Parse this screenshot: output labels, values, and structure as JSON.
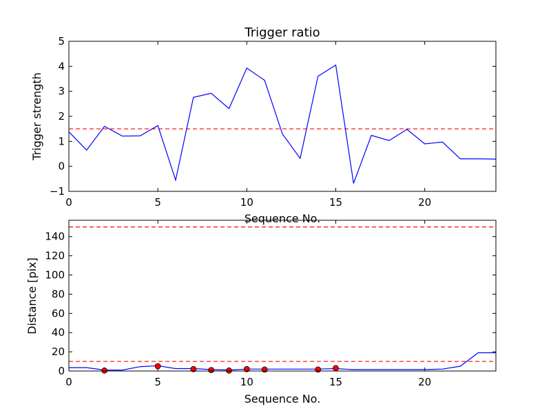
{
  "chart_data": [
    {
      "type": "line",
      "title": "Trigger ratio",
      "xlabel": "Sequence No.",
      "ylabel": "Trigger strength",
      "xlim": [
        0,
        24
      ],
      "ylim": [
        -1,
        5
      ],
      "x_ticks": [
        0,
        5,
        10,
        15,
        20
      ],
      "y_ticks": [
        -1,
        0,
        1,
        2,
        3,
        4,
        5
      ],
      "x_tick_labels": [
        "0",
        "5",
        "10",
        "15",
        "20"
      ],
      "y_tick_labels": [
        "−1",
        "0",
        "1",
        "2",
        "3",
        "4",
        "5"
      ],
      "grid": false,
      "series": [
        {
          "color": "#0000ff",
          "x": [
            0,
            1,
            2,
            3,
            4,
            5,
            6,
            7,
            8,
            9,
            10,
            11,
            12,
            13,
            14,
            15,
            16,
            17,
            18,
            19,
            20,
            21,
            22,
            23,
            24
          ],
          "values": [
            1.38,
            0.65,
            1.6,
            1.21,
            1.22,
            1.63,
            -0.55,
            2.76,
            2.92,
            2.31,
            3.93,
            3.44,
            1.3,
            0.32,
            3.6,
            4.05,
            -0.68,
            1.24,
            1.03,
            1.48,
            0.9,
            0.97,
            0.3,
            0.3,
            0.29
          ]
        }
      ],
      "reference_lines": [
        {
          "y": 1.5,
          "color": "#ff0000",
          "style": "dashed"
        }
      ]
    },
    {
      "type": "line",
      "title": "",
      "xlabel": "Sequence No.",
      "ylabel": "Distance [pix]",
      "xlim": [
        0,
        24
      ],
      "ylim": [
        0,
        157
      ],
      "x_ticks": [
        0,
        5,
        10,
        15,
        20
      ],
      "y_ticks": [
        0,
        20,
        40,
        60,
        80,
        100,
        120,
        140
      ],
      "x_tick_labels": [
        "0",
        "5",
        "10",
        "15",
        "20"
      ],
      "y_tick_labels": [
        "0",
        "20",
        "40",
        "60",
        "80",
        "100",
        "120",
        "140"
      ],
      "grid": false,
      "series": [
        {
          "color": "#0000ff",
          "x": [
            0,
            1,
            2,
            3,
            4,
            5,
            6,
            7,
            8,
            9,
            10,
            11,
            12,
            13,
            14,
            15,
            16,
            17,
            18,
            19,
            20,
            21,
            22,
            23,
            24
          ],
          "values": [
            3.5,
            3.5,
            1,
            1,
            4.5,
            5.5,
            2.5,
            2.5,
            1.5,
            1,
            2,
            2,
            2,
            2,
            2,
            2.5,
            1.5,
            1.5,
            1.5,
            1.5,
            1.5,
            2,
            5,
            19,
            19
          ]
        },
        {
          "color": "#ff0000",
          "marker": "circle",
          "x": [
            2,
            5,
            7,
            8,
            9,
            10,
            11,
            14,
            15
          ],
          "values": [
            0.5,
            5,
            2,
            1,
            0.5,
            2,
            1.5,
            1.5,
            3
          ]
        }
      ],
      "reference_lines": [
        {
          "y": 150,
          "color": "#ff0000",
          "style": "dashed"
        },
        {
          "y": 10,
          "color": "#ff0000",
          "style": "dashed"
        }
      ]
    }
  ]
}
